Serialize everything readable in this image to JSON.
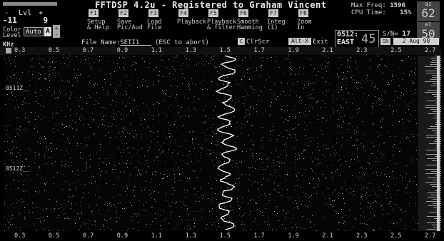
{
  "title": "FFTDSP 4.2u - Registered to Graham Vincent",
  "level": {
    "label": "Lvl",
    "minus": "-",
    "plus": "+",
    "min_value": "-11",
    "max_value": "9"
  },
  "color_level": {
    "label_line1": "Color",
    "label_line2": "Level",
    "mode": "Auto",
    "selected": "A",
    "plus": "+",
    "minus": "-"
  },
  "function_keys": [
    {
      "key": "F1",
      "line1": "Setup",
      "line2": "& Help"
    },
    {
      "key": "F2",
      "line1": "Save",
      "line2": "Pic/Aud"
    },
    {
      "key": "F3",
      "line1": "Load",
      "line2": "File"
    },
    {
      "key": "F4",
      "line1": "Playback",
      "line2": ""
    },
    {
      "key": "F5",
      "line1": "Playback",
      "line2": "& filter"
    },
    {
      "key": "F6",
      "line1": "Smooth",
      "line2": "Hamming"
    },
    {
      "key": "F7",
      "line1": "Integ",
      "line2": "(1)"
    },
    {
      "key": "F8",
      "line1": "Zoom",
      "line2": "In"
    }
  ],
  "max_freq": {
    "label": "Max Freq:",
    "value": "1596"
  },
  "cpu_time": {
    "label": "CPU Time:",
    "value": "15%"
  },
  "az": {
    "label": "az",
    "value": "62"
  },
  "el": {
    "label": "el",
    "value": "50"
  },
  "time_box": {
    "time": "0512:",
    "direction": "EAST",
    "seconds": "45"
  },
  "sn": {
    "label": "S/N=",
    "value": "17",
    "button": "SN"
  },
  "date": "2 Aug 98",
  "file_name": {
    "label": "File Name:",
    "value": "SETI1___",
    "hint": "(ESC to abort)"
  },
  "clear_screen": {
    "key": "C",
    "label": "ClrScr"
  },
  "exit": {
    "key": "Alt-X",
    "label": "Exit"
  },
  "axis_unit": "KHz",
  "top_ticks": [
    "0.3",
    "0.5",
    "0.7",
    "0.9",
    "1.1",
    "1.3",
    "1.5",
    "1.7",
    "1.9",
    "2.1",
    "2.3",
    "2.5",
    "2.7"
  ],
  "bottom_ticks": [
    "0.3",
    "0.5",
    "0.7",
    "0.9",
    "1.1",
    "1.3",
    "1.5",
    "1.7",
    "1.9",
    "2.1",
    "2.3",
    "2.5",
    "2.7"
  ],
  "time_markers": [
    "0511Z",
    "0512Z"
  ],
  "colors": {
    "background": "#000000",
    "panel": "#444444",
    "button": "#c8c8c8",
    "trace": "#ffffff"
  }
}
